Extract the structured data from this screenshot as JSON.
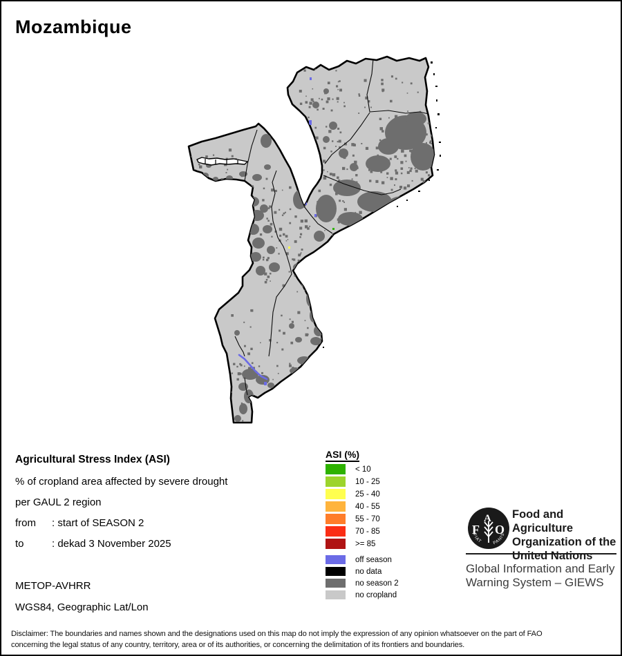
{
  "title": "Mozambique",
  "info_block": {
    "heading": "Agricultural Stress Index (ASI)",
    "line1": "% of cropland area affected by severe drought",
    "line2": "per GAUL 2 region",
    "from_label": "from",
    "from_value": ": start of SEASON 2",
    "to_label": "to",
    "to_value": ": dekad 3 November 2025",
    "sensor": "METOP-AVHRR",
    "projection": "WGS84, Geographic Lat/Lon"
  },
  "legend": {
    "title": "ASI (%)",
    "classes": [
      {
        "label": "< 10",
        "color": "#2db200"
      },
      {
        "label": "10 - 25",
        "color": "#9cd42c"
      },
      {
        "label": "25 - 40",
        "color": "#ffff4f"
      },
      {
        "label": "40 - 55",
        "color": "#ffb43c"
      },
      {
        "label": "55 - 70",
        "color": "#ff7d2a"
      },
      {
        "label": "70 - 85",
        "color": "#fb2d14"
      },
      {
        "label": ">= 85",
        "color": "#b01313"
      }
    ],
    "extra_classes": [
      {
        "label": "off season",
        "color": "#6b6be6"
      },
      {
        "label": "no data",
        "color": "#000000"
      },
      {
        "label": "no season 2",
        "color": "#6e6e6e"
      },
      {
        "label": "no cropland",
        "color": "#c9c9c9"
      }
    ]
  },
  "map": {
    "country": "Mozambique",
    "colors": {
      "no_cropland": "#c9c9c9",
      "no_season_2": "#6e6e6e",
      "off_season": "#6b6be6",
      "boundary": "#000000"
    }
  },
  "footer": {
    "fao_name_lines": [
      "Food and Agriculture",
      "Organization of the",
      "United Nations"
    ],
    "logo_letters": [
      "F",
      "A",
      "O"
    ],
    "logo_motto": [
      "FIAT",
      "PANIS"
    ],
    "giews_lines": [
      "Global Information and Early",
      "Warning System – GIEWS"
    ]
  },
  "disclaimer": "Disclaimer: The boundaries and names shown and the designations used on this map do not imply the expression of any opinion whatsoever on the part of FAO concerning the legal status of any country, territory, area or of its authorities, or concerning the delimitation of its frontiers and boundaries."
}
